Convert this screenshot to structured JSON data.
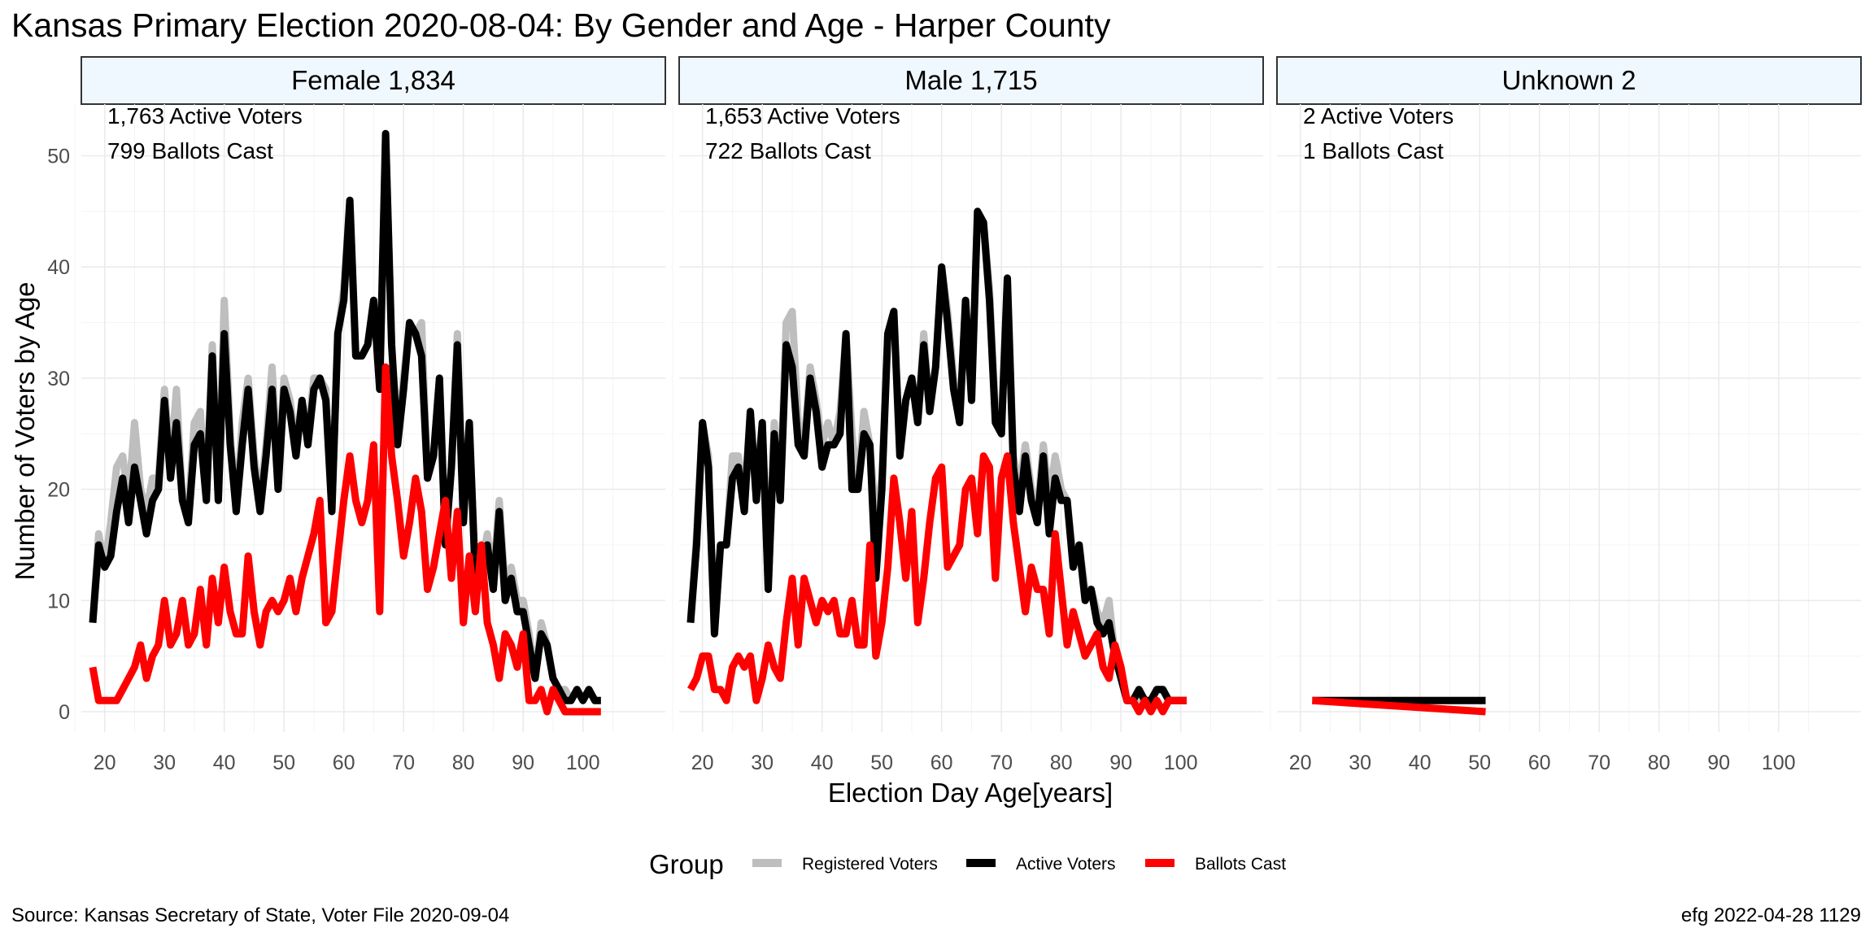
{
  "title": "Kansas Primary Election 2020-08-04:  By Gender and Age - Harper County",
  "caption_left": "Source:  Kansas Secretary of State, Voter File  2020-09-04",
  "caption_right": "efg 2022-04-28 1129",
  "chart_data": {
    "type": "line",
    "title": "Kansas Primary Election 2020-08-04:  By Gender and Age - Harper County",
    "xlabel": "Election Day Age[years]",
    "ylabel": "Number of Voters by Age",
    "xlim": [
      18,
      103
    ],
    "ylim": [
      0,
      52
    ],
    "x_ticks": [
      20,
      30,
      40,
      50,
      60,
      70,
      80,
      90,
      100
    ],
    "y_ticks": [
      0,
      10,
      20,
      30,
      40,
      50
    ],
    "grid": true,
    "legend": {
      "title": "Group",
      "position": "bottom",
      "entries": [
        {
          "name": "Registered Voters",
          "color": "#bebebe"
        },
        {
          "name": "Active Voters",
          "color": "#000000"
        },
        {
          "name": "Ballots Cast",
          "color": "#ff0000"
        }
      ]
    },
    "panels": [
      {
        "strip": "Female 1,834",
        "annotations": [
          "1,763 Active Voters",
          "799 Ballots Cast"
        ],
        "x": [
          18,
          19,
          20,
          21,
          22,
          23,
          24,
          25,
          26,
          27,
          28,
          29,
          30,
          31,
          32,
          33,
          34,
          35,
          36,
          37,
          38,
          39,
          40,
          41,
          42,
          43,
          44,
          45,
          46,
          47,
          48,
          49,
          50,
          51,
          52,
          53,
          54,
          55,
          56,
          57,
          58,
          59,
          60,
          61,
          62,
          63,
          64,
          65,
          66,
          67,
          68,
          69,
          70,
          71,
          72,
          73,
          74,
          75,
          76,
          77,
          78,
          79,
          80,
          81,
          82,
          83,
          84,
          85,
          86,
          87,
          88,
          89,
          90,
          91,
          92,
          93,
          94,
          95,
          96,
          97,
          98,
          99,
          100,
          101,
          102,
          103
        ],
        "series": [
          {
            "name": "Registered Voters",
            "color": "#bebebe",
            "values": [
              8,
              16,
              13,
              17,
              22,
              23,
              19,
              26,
              20,
              18,
              21,
              21,
              29,
              22,
              29,
              19,
              18,
              26,
              27,
              19,
              33,
              19,
              37,
              25,
              18,
              26,
              30,
              23,
              19,
              24,
              31,
              21,
              30,
              28,
              24,
              28,
              25,
              30,
              30,
              29,
              18,
              34,
              38,
              46,
              32,
              32,
              33,
              37,
              29,
              52,
              33,
              25,
              30,
              35,
              34,
              35,
              21,
              23,
              30,
              15,
              22,
              34,
              18,
              26,
              12,
              13,
              16,
              12,
              19,
              11,
              13,
              10,
              10,
              7,
              3,
              8,
              6,
              3,
              2,
              2,
              1,
              2,
              1,
              2,
              1,
              1
            ]
          },
          {
            "name": "Active Voters",
            "color": "#000000",
            "values": [
              8,
              15,
              13,
              14,
              18,
              21,
              17,
              22,
              19,
              16,
              19,
              20,
              28,
              21,
              26,
              19,
              17,
              24,
              25,
              19,
              32,
              19,
              34,
              24,
              18,
              24,
              29,
              22,
              18,
              23,
              29,
              20,
              29,
              27,
              23,
              28,
              24,
              29,
              30,
              28,
              18,
              34,
              37,
              46,
              32,
              32,
              33,
              37,
              29,
              52,
              33,
              24,
              29,
              35,
              34,
              32,
              21,
              23,
              30,
              15,
              22,
              33,
              17,
              26,
              12,
              13,
              15,
              11,
              18,
              10,
              12,
              9,
              9,
              6,
              3,
              7,
              6,
              3,
              2,
              1,
              1,
              2,
              1,
              2,
              1,
              1
            ]
          },
          {
            "name": "Ballots Cast",
            "color": "#ff0000",
            "values": [
              4,
              1,
              1,
              1,
              1,
              2,
              3,
              4,
              6,
              3,
              5,
              6,
              10,
              6,
              7,
              10,
              6,
              7,
              11,
              6,
              12,
              8,
              13,
              9,
              7,
              7,
              14,
              9,
              6,
              9,
              10,
              9,
              10,
              12,
              9,
              12,
              14,
              16,
              19,
              8,
              9,
              14,
              19,
              23,
              19,
              17,
              19,
              24,
              9,
              31,
              23,
              19,
              14,
              17,
              21,
              18,
              11,
              13,
              16,
              19,
              12,
              18,
              8,
              14,
              9,
              15,
              8,
              6,
              3,
              7,
              6,
              4,
              7,
              1,
              1,
              2,
              0,
              2,
              1,
              0,
              0,
              0,
              0,
              0,
              0,
              0
            ]
          }
        ]
      },
      {
        "strip": "Male 1,715",
        "annotations": [
          "1,653 Active Voters",
          "722 Ballots Cast"
        ],
        "x": [
          18,
          19,
          20,
          21,
          22,
          23,
          24,
          25,
          26,
          27,
          28,
          29,
          30,
          31,
          32,
          33,
          34,
          35,
          36,
          37,
          38,
          39,
          40,
          41,
          42,
          43,
          44,
          45,
          46,
          47,
          48,
          49,
          50,
          51,
          52,
          53,
          54,
          55,
          56,
          57,
          58,
          59,
          60,
          61,
          62,
          63,
          64,
          65,
          66,
          67,
          68,
          69,
          70,
          71,
          72,
          73,
          74,
          75,
          76,
          77,
          78,
          79,
          80,
          81,
          82,
          83,
          84,
          85,
          86,
          87,
          88,
          89,
          90,
          91,
          92,
          93,
          94,
          95,
          96,
          97,
          98,
          99,
          100,
          101
        ],
        "series": [
          {
            "name": "Registered Voters",
            "color": "#bebebe",
            "values": [
              8,
              16,
              26,
              23,
              7,
              15,
              15,
              23,
              23,
              19,
              27,
              20,
              26,
              11,
              26,
              20,
              35,
              36,
              26,
              24,
              31,
              28,
              24,
              26,
              24,
              27,
              34,
              25,
              20,
              27,
              24,
              17,
              21,
              34,
              36,
              24,
              28,
              30,
              26,
              34,
              27,
              31,
              40,
              36,
              30,
              26,
              37,
              28,
              45,
              44,
              38,
              27,
              26,
              39,
              23,
              20,
              24,
              20,
              18,
              24,
              19,
              23,
              20,
              19,
              14,
              15,
              11,
              11,
              9,
              8,
              10,
              5,
              3,
              1,
              1,
              1,
              1,
              1,
              2,
              2,
              1,
              1,
              1,
              1
            ]
          },
          {
            "name": "Active Voters",
            "color": "#000000",
            "values": [
              8,
              15,
              26,
              22,
              7,
              15,
              15,
              21,
              22,
              18,
              27,
              19,
              26,
              11,
              25,
              19,
              33,
              31,
              24,
              23,
              30,
              27,
              22,
              24,
              24,
              25,
              34,
              20,
              20,
              25,
              24,
              12,
              20,
              34,
              36,
              23,
              28,
              30,
              26,
              33,
              27,
              31,
              40,
              35,
              29,
              26,
              37,
              28,
              45,
              44,
              37,
              26,
              25,
              39,
              22,
              18,
              23,
              19,
              17,
              23,
              16,
              21,
              19,
              19,
              13,
              15,
              10,
              11,
              8,
              7,
              8,
              5,
              3,
              1,
              1,
              2,
              1,
              1,
              2,
              2,
              1,
              1,
              1,
              1
            ]
          },
          {
            "name": "Ballots Cast",
            "color": "#ff0000",
            "values": [
              2,
              3,
              5,
              5,
              2,
              2,
              1,
              4,
              5,
              4,
              5,
              1,
              3,
              6,
              4,
              3,
              8,
              12,
              6,
              12,
              10,
              8,
              10,
              9,
              10,
              7,
              7,
              10,
              6,
              6,
              15,
              5,
              8,
              13,
              21,
              17,
              12,
              18,
              8,
              12,
              17,
              21,
              22,
              13,
              14,
              15,
              20,
              21,
              16,
              23,
              22,
              12,
              21,
              23,
              17,
              13,
              9,
              13,
              11,
              11,
              7,
              16,
              11,
              6,
              9,
              7,
              5,
              6,
              7,
              4,
              3,
              6,
              4,
              1,
              1,
              0,
              1,
              0,
              1,
              0,
              1,
              1,
              1,
              1
            ]
          }
        ]
      },
      {
        "strip": "Unknown 2",
        "annotations": [
          "2 Active Voters",
          "1 Ballots Cast"
        ],
        "x": [
          22,
          51
        ],
        "series": [
          {
            "name": "Registered Voters",
            "color": "#bebebe",
            "values": [
              1,
              1
            ]
          },
          {
            "name": "Active Voters",
            "color": "#000000",
            "values": [
              1,
              1
            ]
          },
          {
            "name": "Ballots Cast",
            "color": "#ff0000",
            "values": [
              1,
              0
            ]
          }
        ]
      }
    ]
  }
}
